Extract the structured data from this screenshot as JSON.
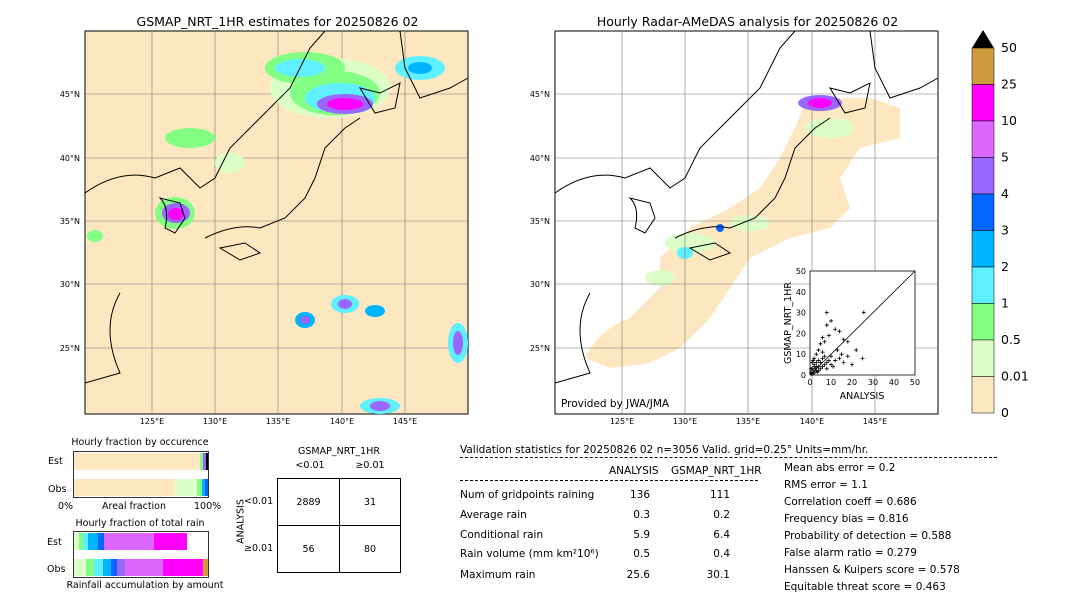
{
  "left_map": {
    "title": "GSMAP_NRT_1HR estimates for 20250826 02",
    "lat_labels": [
      "45°N",
      "40°N",
      "35°N",
      "30°N",
      "25°N"
    ],
    "lon_labels": [
      "125°E",
      "130°E",
      "135°E",
      "140°E",
      "145°E"
    ]
  },
  "right_map": {
    "title": "Hourly Radar-AMeDAS analysis for 20250826 02",
    "lat_labels": [
      "45°N",
      "40°N",
      "35°N",
      "30°N",
      "25°N"
    ],
    "lon_labels": [
      "125°E",
      "130°E",
      "135°E",
      "140°E",
      "145°E"
    ],
    "credit": "Provided by JWA/JMA"
  },
  "colorbar": {
    "labels": [
      "50",
      "25",
      "10",
      "5",
      "4",
      "3",
      "2",
      "1",
      "0.5",
      "0.01",
      "0"
    ],
    "colors": [
      "#cd9a3c",
      "#ff00ff",
      "#dd66ff",
      "#9b66ff",
      "#0066ff",
      "#00b4ff",
      "#5ff0ff",
      "#82ff82",
      "#dcffc8",
      "#fde7c0"
    ]
  },
  "occurrence_chart": {
    "title": "Hourly fraction by occurence",
    "row_labels": [
      "Est",
      "Obs"
    ],
    "x_left": "0%",
    "x_mid": "Areal fraction",
    "x_right": "100%"
  },
  "amount_chart": {
    "title": "Hourly fraction of total rain",
    "row_labels": [
      "Est",
      "Obs"
    ],
    "footer": "Rainfall accumulation by amount"
  },
  "contingency": {
    "header": "GSMAP_NRT_1HR",
    "col_labels": [
      "<0.01",
      "≥0.01"
    ],
    "side_label": "ANALYSIS",
    "row_labels": [
      "<0.01",
      "≥0.01"
    ],
    "cells": [
      [
        "2889",
        "31"
      ],
      [
        "56",
        "80"
      ]
    ]
  },
  "validation": {
    "header": "Validation statistics for 20250826 02  n=3056 Valid. grid=0.25° Units=mm/hr.",
    "col_analysis": "ANALYSIS",
    "col_gsmap": "GSMAP_NRT_1HR",
    "rows": [
      {
        "label": "Num of gridpoints raining",
        "analysis": "136",
        "gsmap": "111"
      },
      {
        "label": "Average rain",
        "analysis": "0.3",
        "gsmap": "0.2"
      },
      {
        "label": "Conditional rain",
        "analysis": "5.9",
        "gsmap": "6.4"
      },
      {
        "label": "Rain volume (mm km²10⁶)",
        "analysis": "0.5",
        "gsmap": "0.4"
      },
      {
        "label": "Maximum rain",
        "analysis": "25.6",
        "gsmap": "30.1"
      }
    ],
    "scores": [
      "Mean abs error =    0.2",
      "RMS error =    1.1",
      "Correlation coeff =  0.686",
      "Frequency bias =  0.816",
      "Probability of detection =  0.588",
      "False alarm ratio =  0.279",
      "Hanssen & Kuipers score =  0.578",
      "Equitable threat score =  0.463"
    ]
  },
  "chart_data": {
    "type": "scatter",
    "xlabel": "ANALYSIS",
    "ylabel": "GSMAP_NRT_1HR",
    "xlim": [
      0,
      50
    ],
    "ylim": [
      0,
      50
    ],
    "ticks": [
      "0",
      "10",
      "20",
      "30",
      "40",
      "50"
    ],
    "points": [
      [
        0.5,
        1
      ],
      [
        1,
        0.5
      ],
      [
        1.5,
        2
      ],
      [
        2,
        1
      ],
      [
        2.5,
        3
      ],
      [
        3,
        2
      ],
      [
        3.5,
        1.5
      ],
      [
        4,
        4
      ],
      [
        1,
        3
      ],
      [
        2,
        5
      ],
      [
        3,
        6
      ],
      [
        4,
        2
      ],
      [
        5,
        3
      ],
      [
        5,
        6
      ],
      [
        6,
        4
      ],
      [
        6,
        8
      ],
      [
        7,
        5
      ],
      [
        7,
        9
      ],
      [
        8,
        6
      ],
      [
        8,
        3
      ],
      [
        9,
        7
      ],
      [
        10,
        5
      ],
      [
        10,
        9
      ],
      [
        11,
        4
      ],
      [
        12,
        7
      ],
      [
        13,
        12
      ],
      [
        14,
        8
      ],
      [
        15,
        10
      ],
      [
        16,
        6
      ],
      [
        18,
        9
      ],
      [
        20,
        5
      ],
      [
        22,
        12
      ],
      [
        25,
        8
      ],
      [
        2,
        8
      ],
      [
        3,
        10
      ],
      [
        4,
        12
      ],
      [
        5,
        15
      ],
      [
        6,
        18
      ],
      [
        7,
        16
      ],
      [
        9,
        19
      ],
      [
        8,
        24
      ],
      [
        10,
        26
      ],
      [
        12,
        22
      ],
      [
        14,
        21
      ],
      [
        16,
        17
      ],
      [
        18,
        16
      ],
      [
        8,
        30
      ],
      [
        1,
        6
      ],
      [
        2,
        4
      ],
      [
        0.5,
        3
      ],
      [
        1.5,
        7
      ],
      [
        3,
        4
      ],
      [
        4,
        7
      ],
      [
        6,
        11
      ],
      [
        25.6,
        30.1
      ]
    ]
  }
}
